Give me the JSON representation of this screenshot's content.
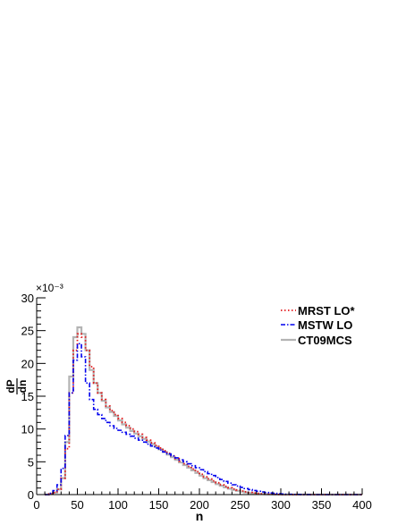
{
  "chart_data": {
    "type": "line",
    "title": "",
    "xlabel": "n",
    "ylabel_num": "dP",
    "ylabel_den": "dn",
    "y_exponent": "×10⁻³",
    "xlim": [
      0,
      400
    ],
    "ylim": [
      0,
      30
    ],
    "x_ticks": [
      "0",
      "50",
      "100",
      "150",
      "200",
      "250",
      "300",
      "350",
      "400"
    ],
    "y_ticks": [
      "0",
      "5",
      "10",
      "15",
      "20",
      "25",
      "30"
    ],
    "grid": false,
    "legend_position": "top-right",
    "bin_width": 5,
    "series": [
      {
        "name": "MRST LO*",
        "color": "#e41a1c",
        "dash": "dotted",
        "x": [
          10,
          15,
          20,
          25,
          30,
          35,
          40,
          45,
          50,
          55,
          60,
          65,
          70,
          75,
          80,
          85,
          90,
          95,
          100,
          105,
          110,
          115,
          120,
          125,
          130,
          135,
          140,
          145,
          150,
          155,
          160,
          165,
          170,
          175,
          180,
          185,
          190,
          195,
          200,
          205,
          210,
          215,
          220,
          225,
          230,
          235,
          240,
          245,
          250,
          255,
          260,
          265,
          270,
          275,
          280,
          285,
          290,
          295,
          300,
          305,
          310,
          315,
          320,
          325,
          330,
          335,
          340,
          345,
          350,
          355,
          360,
          365,
          370,
          375,
          380,
          385,
          390,
          395
        ],
        "y": [
          0,
          0.1,
          0.3,
          0.8,
          2.5,
          7,
          15.5,
          22,
          24.5,
          24,
          22,
          19.5,
          17,
          15.5,
          14.5,
          13.5,
          12.8,
          12.2,
          11.6,
          11,
          10.5,
          10,
          9.6,
          9.2,
          8.7,
          8.3,
          7.9,
          7.5,
          7.1,
          6.7,
          6.3,
          5.9,
          5.5,
          5.1,
          4.7,
          4.3,
          3.9,
          3.5,
          3.1,
          2.7,
          2.4,
          2.1,
          1.8,
          1.5,
          1.25,
          1.05,
          0.85,
          0.7,
          0.55,
          0.42,
          0.32,
          0.24,
          0.18,
          0.12,
          0.08,
          0.05,
          0.03,
          0.02,
          0.01,
          0,
          0,
          0,
          0,
          0,
          0,
          0,
          0,
          0,
          0,
          0,
          0,
          0,
          0,
          0,
          0,
          0,
          0,
          0
        ]
      },
      {
        "name": "MSTW LO",
        "color": "#0000ee",
        "dash": "dash-dot",
        "x": [
          10,
          15,
          20,
          25,
          30,
          35,
          40,
          45,
          50,
          55,
          60,
          65,
          70,
          75,
          80,
          85,
          90,
          95,
          100,
          105,
          110,
          115,
          120,
          125,
          130,
          135,
          140,
          145,
          150,
          155,
          160,
          165,
          170,
          175,
          180,
          185,
          190,
          195,
          200,
          205,
          210,
          215,
          220,
          225,
          230,
          235,
          240,
          245,
          250,
          255,
          260,
          265,
          270,
          275,
          280,
          285,
          290,
          295,
          300,
          305,
          310,
          315,
          320,
          325,
          330,
          335,
          340,
          345,
          350,
          355,
          360,
          365,
          370,
          375,
          380,
          385,
          390,
          395
        ],
        "y": [
          0,
          0.2,
          0.6,
          1.5,
          4,
          9,
          15.5,
          20.5,
          23,
          21,
          17,
          14.5,
          13,
          12.2,
          11.6,
          11,
          10.5,
          10.1,
          9.8,
          9.5,
          9.2,
          8.9,
          8.6,
          8.3,
          8,
          7.7,
          7.4,
          7.1,
          6.8,
          6.5,
          6.2,
          5.9,
          5.6,
          5.3,
          5,
          4.7,
          4.4,
          4.1,
          3.8,
          3.5,
          3.2,
          2.9,
          2.6,
          2.3,
          2,
          1.75,
          1.5,
          1.3,
          1.1,
          0.92,
          0.76,
          0.62,
          0.5,
          0.4,
          0.32,
          0.25,
          0.19,
          0.14,
          0.1,
          0.07,
          0.05,
          0.03,
          0.02,
          0.01,
          0.01,
          0,
          0,
          0,
          0,
          0,
          0,
          0,
          0,
          0,
          0,
          0,
          0,
          0
        ]
      },
      {
        "name": "CT09MCS",
        "color": "#b4b4b4",
        "dash": "solid",
        "x": [
          10,
          15,
          20,
          25,
          30,
          35,
          40,
          45,
          50,
          55,
          60,
          65,
          70,
          75,
          80,
          85,
          90,
          95,
          100,
          105,
          110,
          115,
          120,
          125,
          130,
          135,
          140,
          145,
          150,
          155,
          160,
          165,
          170,
          175,
          180,
          185,
          190,
          195,
          200,
          205,
          210,
          215,
          220,
          225,
          230,
          235,
          240,
          245,
          250,
          255,
          260,
          265,
          270,
          275,
          280,
          285,
          290,
          295,
          300,
          305,
          310,
          315,
          320,
          325,
          330,
          335,
          340,
          345,
          350,
          355,
          360,
          365,
          370,
          375,
          380,
          385,
          390,
          395
        ],
        "y": [
          0,
          0.1,
          0.3,
          0.8,
          2.5,
          8,
          18,
          24,
          25.5,
          24.5,
          22,
          19,
          17,
          15.5,
          14.3,
          13.3,
          12.6,
          12,
          11.3,
          10.7,
          10.2,
          9.7,
          9.3,
          8.9,
          8.5,
          8.1,
          7.7,
          7.3,
          6.9,
          6.5,
          6.1,
          5.7,
          5.3,
          4.9,
          4.5,
          4.1,
          3.7,
          3.3,
          2.9,
          2.5,
          2.2,
          1.9,
          1.6,
          1.35,
          1.1,
          0.9,
          0.72,
          0.57,
          0.44,
          0.33,
          0.24,
          0.17,
          0.12,
          0.08,
          0.05,
          0.03,
          0.02,
          0.01,
          0,
          0,
          0,
          0,
          0,
          0,
          0,
          0,
          0,
          0,
          0,
          0,
          0,
          0,
          0,
          0,
          0,
          0,
          0,
          0
        ]
      }
    ]
  }
}
